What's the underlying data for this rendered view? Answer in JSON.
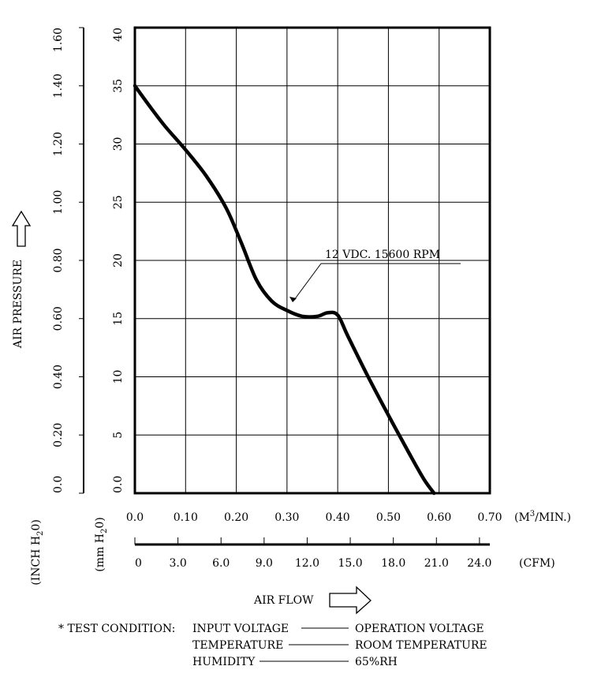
{
  "chart_data": {
    "type": "line",
    "xlabel": "AIR FLOW",
    "ylabel": "AIR PRESSURE",
    "x_unit": "M3/MIN.",
    "x_unit_display": {
      "pre": "(M",
      "sup": "3",
      "post": "/MIN.)"
    },
    "x2_unit": "(CFM)",
    "y_unit_inch": {
      "pre": "(INCH H",
      "sub": "2",
      "post": "0)"
    },
    "y_unit_mm": {
      "pre": "(mm H",
      "sub": "2",
      "post": "0)"
    },
    "xlim": [
      0,
      0.7
    ],
    "ylim_mm": [
      0,
      40
    ],
    "ylim_inch": [
      0,
      1.6
    ],
    "x_ticks": [
      "0.0",
      "0.10",
      "0.20",
      "0.30",
      "0.40",
      "0.50",
      "0.60",
      "0.70"
    ],
    "x2_ticks": [
      "0",
      "3.0",
      "6.0",
      "9.0",
      "12.0",
      "15.0",
      "18.0",
      "21.0",
      "24.0"
    ],
    "y_ticks_mm": [
      "0.0",
      "5",
      "10",
      "15",
      "20",
      "25",
      "30",
      "35",
      "40"
    ],
    "y_ticks_inch": [
      "0.0",
      "0.20",
      "0.40",
      "0.60",
      "0.80",
      "1.00",
      "1.20",
      "1.40",
      "1.60"
    ],
    "grid": true,
    "series": [
      {
        "name": "12 VDC. 15600 RPM",
        "x": [
          0.0,
          0.03,
          0.06,
          0.1,
          0.14,
          0.18,
          0.21,
          0.24,
          0.27,
          0.3,
          0.33,
          0.36,
          0.38,
          0.4,
          0.42,
          0.46,
          0.5,
          0.54,
          0.57,
          0.59
        ],
        "y": [
          35,
          33.2,
          31.5,
          29.5,
          27.3,
          24.5,
          21.5,
          18.3,
          16.5,
          15.7,
          15.2,
          15.2,
          15.5,
          15.3,
          13.5,
          10.0,
          6.7,
          3.5,
          1.2,
          0.0
        ]
      }
    ],
    "annotation": {
      "text": "12 VDC. 15600 RPM",
      "arrow_to": {
        "x": 0.31,
        "y": 16.0
      }
    }
  },
  "test_condition": {
    "title": "* TEST CONDITION:",
    "rows": [
      {
        "label": "INPUT VOLTAGE",
        "value": "OPERATION VOLTAGE"
      },
      {
        "label": "TEMPERATURE",
        "value": "ROOM TEMPERATURE"
      },
      {
        "label": "HUMIDITY",
        "value": "65%RH"
      }
    ]
  }
}
